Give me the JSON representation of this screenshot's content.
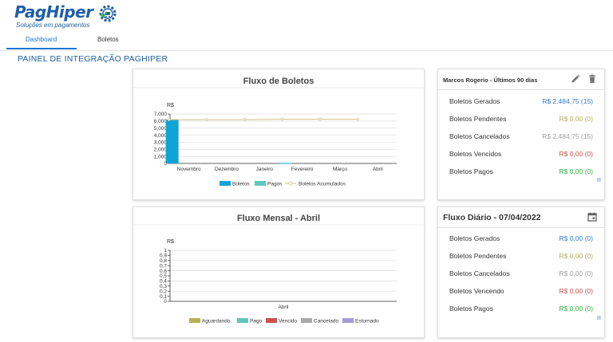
{
  "logo": {
    "brand": "PagHiper",
    "tagline": "Soluções em pagamentos"
  },
  "tabs": [
    {
      "label": "Dashboard"
    },
    {
      "label": "Boletos"
    }
  ],
  "page_title": "PAINEL DE INTEGRAÇÃO PAGHIPER",
  "colors": {
    "accent": "#1976d2",
    "blue_value": "#2f7ad8",
    "yellow_value": "#b5ad58",
    "gray_value": "#9e9e9e",
    "red_value": "#c9524d",
    "green_value": "#2db23a"
  },
  "summary_panel": {
    "title": "Marcos Rogerio - Últimos 90 dias",
    "edit_icon": "pencil-icon",
    "delete_icon": "trash-icon",
    "rows": [
      {
        "label": "Boletos Gerados",
        "value": "R$ 2.484,75 (15)",
        "color": "#2f7ad8"
      },
      {
        "label": "Boletos Pendentes",
        "value": "R$ 0,00 (0)",
        "color": "#b5ad58"
      },
      {
        "label": "Boletos Cancelados",
        "value": "R$ 2.484,75 (15)",
        "color": "#9e9e9e"
      },
      {
        "label": "Boletos Vencidos",
        "value": "R$ 0,00 (0)",
        "color": "#c9524d"
      },
      {
        "label": "Boletos Pagos",
        "value": "R$ 0,00 (0)",
        "color": "#2db23a"
      }
    ]
  },
  "daily_panel": {
    "title": "Fluxo Diário - 07/04/2022",
    "calendar_icon": "calendar-icon",
    "rows": [
      {
        "label": "Boletos Gerados",
        "value": "R$ 0,00 (0)",
        "color": "#2f7ad8"
      },
      {
        "label": "Boletos Pendentes",
        "value": "R$ 0,00 (0)",
        "color": "#b5ad58"
      },
      {
        "label": "Boletos Cancelados",
        "value": "R$ 0,00 (0)",
        "color": "#9e9e9e"
      },
      {
        "label": "Boletos Vencendo",
        "value": "R$ 0,00 (0)",
        "color": "#c9524d"
      },
      {
        "label": "Boletos Pagos",
        "value": "R$ 0,00 (0)",
        "color": "#2db23a"
      }
    ]
  },
  "chart_data": [
    {
      "type": "bar",
      "title": "Fluxo de Boletos",
      "ylabel": "R$",
      "ylim": [
        0,
        7000
      ],
      "yticks": [
        "0",
        "1,000",
        "2,000",
        "3,000",
        "4,000",
        "5,000",
        "6,000",
        "7,000"
      ],
      "categories": [
        "Novembro",
        "Dezembro",
        "Janeiro",
        "Fevereiro",
        "Março",
        "Abril"
      ],
      "series": [
        {
          "name": "Boletos",
          "kind": "bar",
          "color": "#0fa3d6",
          "values": [
            6200,
            0,
            0,
            60,
            0,
            0
          ]
        },
        {
          "name": "Pagos",
          "kind": "bar",
          "color": "#5cc7be",
          "values": [
            0,
            0,
            0,
            0,
            0,
            0
          ]
        },
        {
          "name": "Boletos Acumulados",
          "kind": "line",
          "color": "#d8c98f",
          "values": [
            6200,
            6200,
            6200,
            6260,
            6260,
            6260
          ]
        }
      ],
      "grid": true,
      "legend": "bottom"
    },
    {
      "type": "bar",
      "title": "Fluxo Mensal - Abril",
      "ylabel": "R$",
      "ylim": [
        0,
        1
      ],
      "yticks": [
        "0",
        "0,2",
        "0,4",
        "0,6",
        "0,8",
        "1"
      ],
      "minor_yticks": [
        "0,1",
        "0,3",
        "0,5",
        "0,7",
        "0,9"
      ],
      "categories": [
        "Abril"
      ],
      "series": [
        {
          "name": "Aguardando",
          "color": "#b8b256",
          "values": [
            0
          ]
        },
        {
          "name": "Pago",
          "color": "#5cc7be",
          "values": [
            0
          ]
        },
        {
          "name": "Vencido",
          "color": "#c9524d",
          "values": [
            0
          ]
        },
        {
          "name": "Cancelado",
          "color": "#a9a9a9",
          "values": [
            0
          ]
        },
        {
          "name": "Estornado",
          "color": "#a79bd8",
          "values": [
            0
          ]
        }
      ],
      "grid": true,
      "legend": "bottom"
    }
  ]
}
